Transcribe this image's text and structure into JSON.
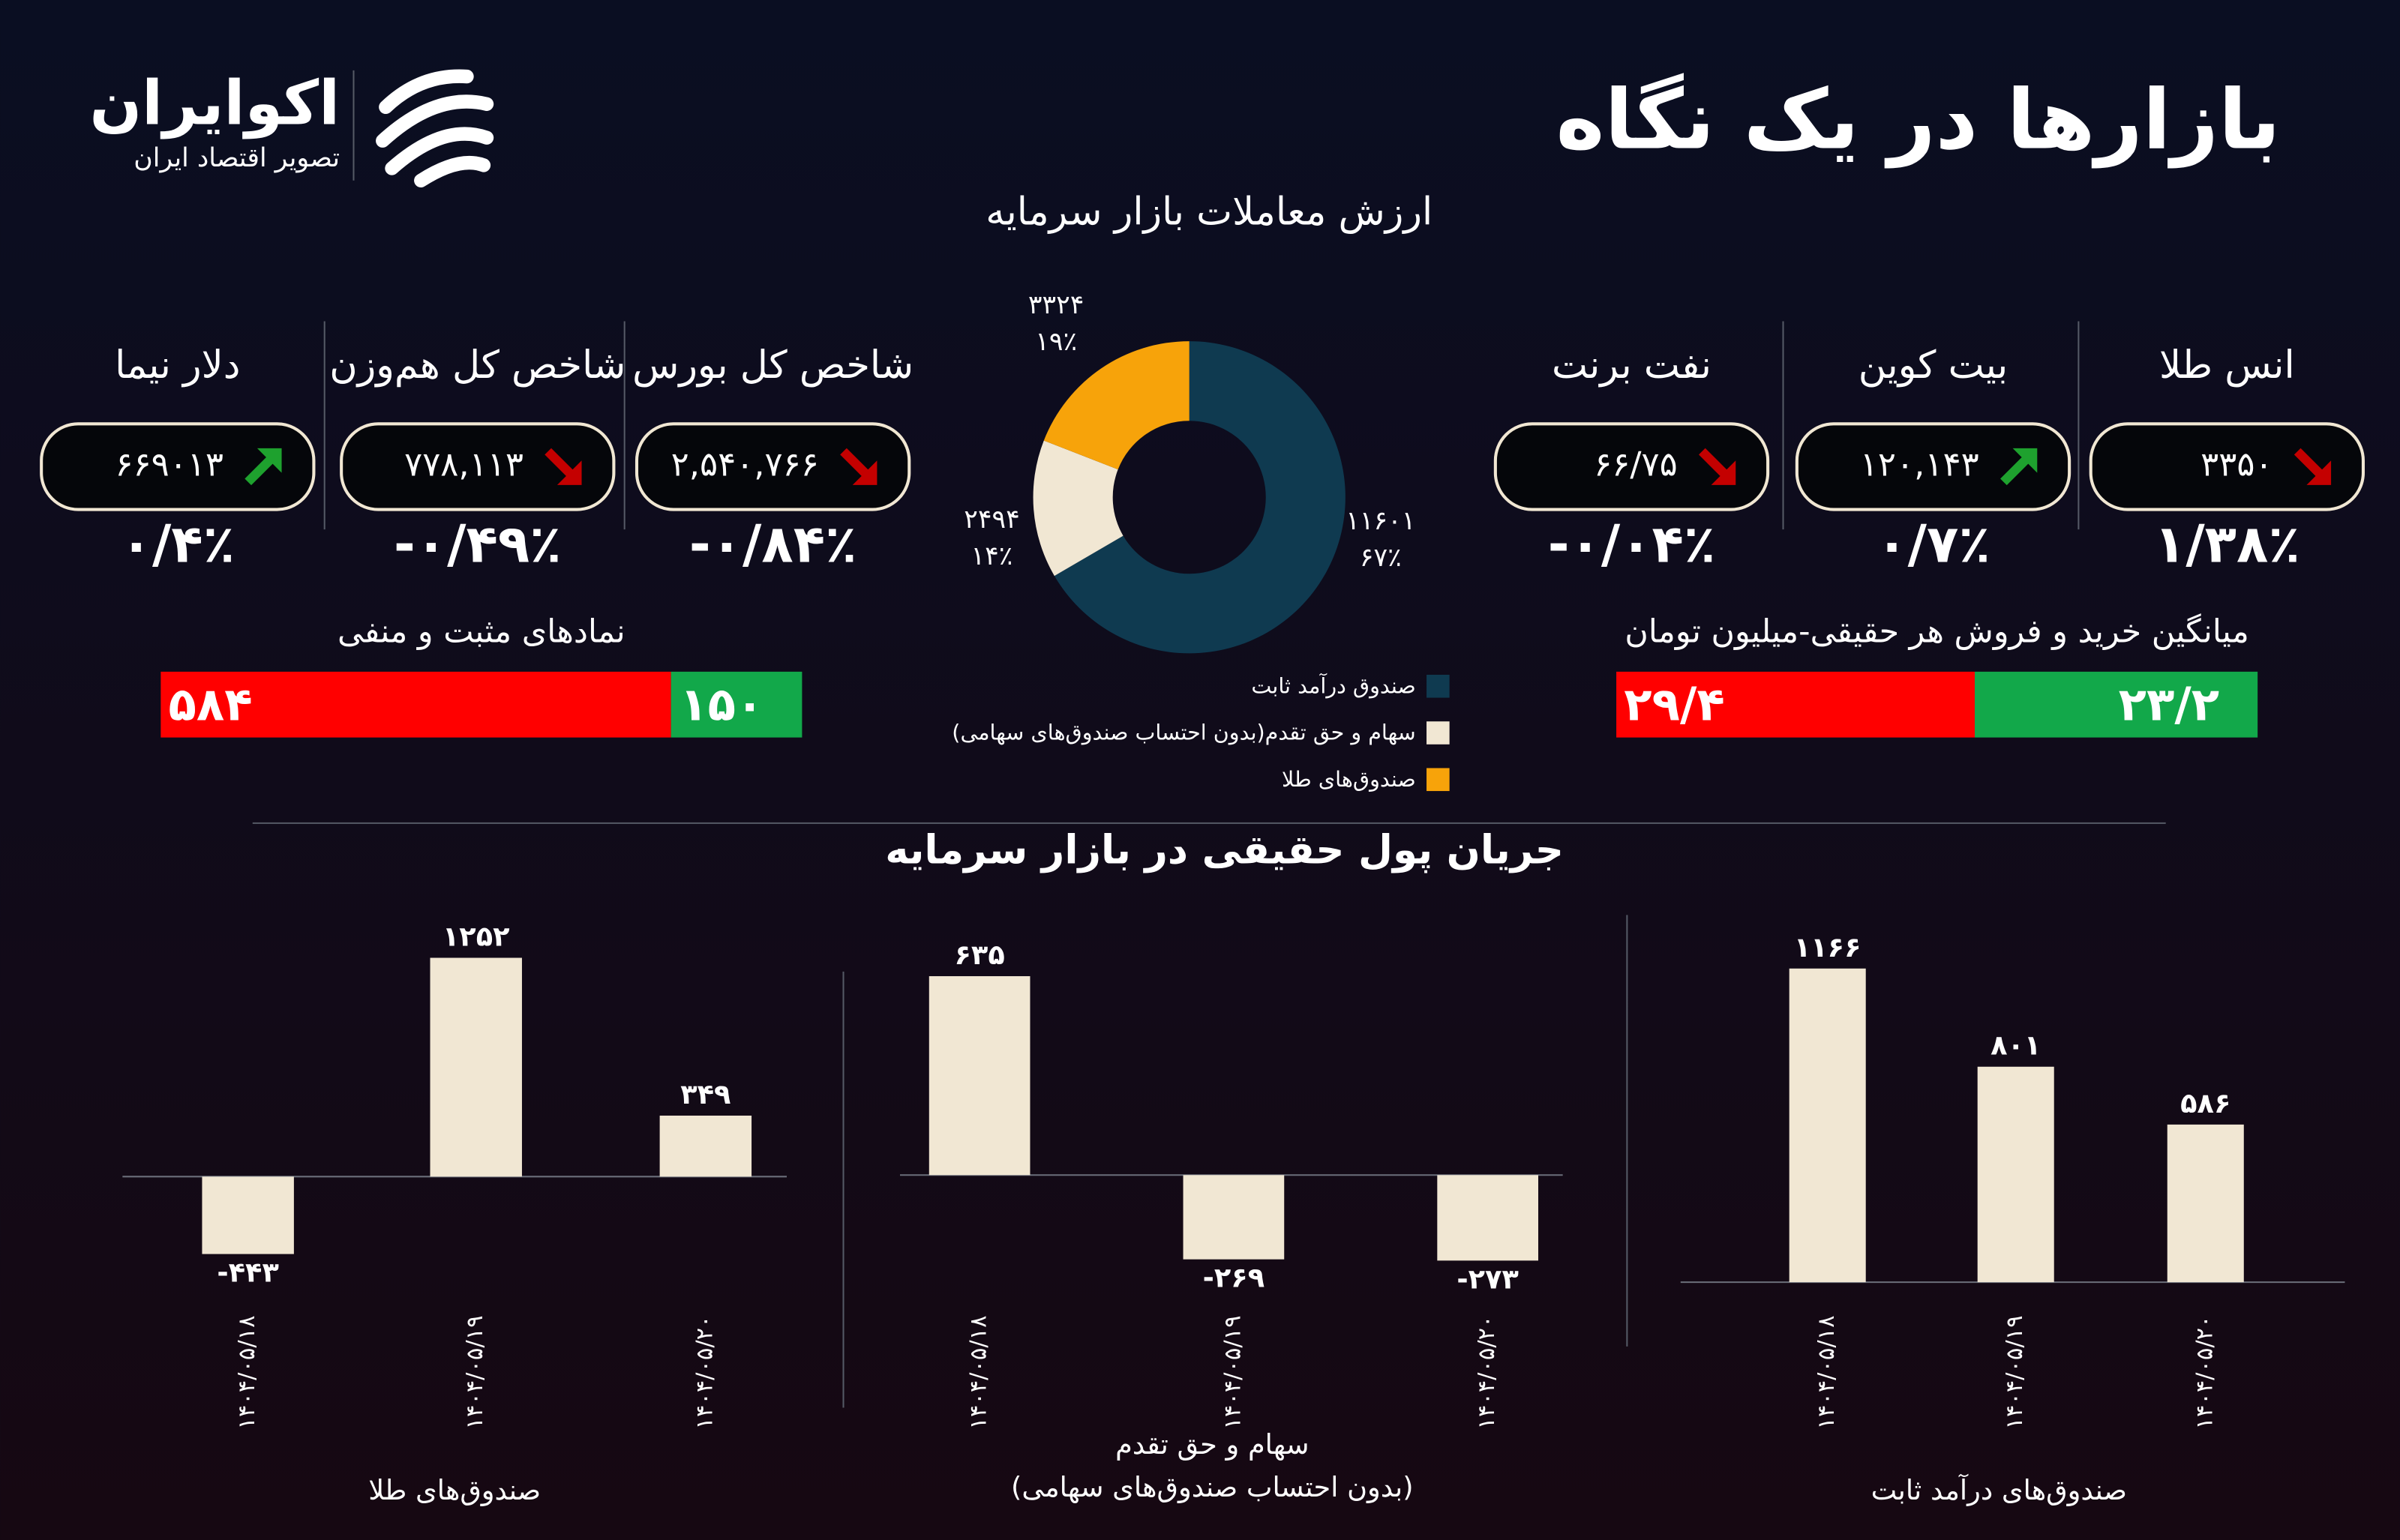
{
  "header": {
    "title": "بازارها در یک نگاه",
    "logo_name": "اکوایران",
    "logo_tagline": "تصویر اقتصاد ایران"
  },
  "tickers": [
    {
      "name": "انس طلا",
      "value": "۳۳۵۰",
      "change": "۱/۳۸٪",
      "direction": "down"
    },
    {
      "name": "بیت کوین",
      "value": "۱۲۰,۱۴۳",
      "change": "۰/۷٪",
      "direction": "up"
    },
    {
      "name": "نفت برنت",
      "value": "۶۶/۷۵",
      "change": "-۰/۰۴٪",
      "direction": "down"
    },
    {
      "name": "شاخص کل بورس",
      "value": "۲,۵۴۰,۷۶۶",
      "change": "-۰/۸۴٪",
      "direction": "down"
    },
    {
      "name": "شاخص کل هم‌وزن",
      "value": "۷۷۸,۱۱۳",
      "change": "-۰/۴۹٪",
      "direction": "down"
    },
    {
      "name": "دلار نیما",
      "value": "۶۶۹۰۱۳",
      "change": "۰/۴٪",
      "direction": "up"
    }
  ],
  "flow_title": "جریان پول حقیقی در بازار سرمایه",
  "chart_data": [
    {
      "type": "pie",
      "title": "ارزش معاملات  بازار سرمایه",
      "categories": [
        "صندوق درآمد ثابت",
        "سهام و حق تقدم(بدون احتساب صندوق‌های سهامی)",
        "صندوق‌های طلا"
      ],
      "values": [
        11601,
        2494,
        3324
      ],
      "value_labels": [
        "۱۱۶۰۱",
        "۲۴۹۴",
        "۳۳۲۴"
      ],
      "percent_labels": [
        "۶۷٪",
        "۱۴٪",
        "۱۹٪"
      ],
      "colors": [
        "#0f3a50",
        "#f1e7d3",
        "#f7a30a"
      ],
      "donut": true
    },
    {
      "type": "stacked-hbar",
      "title": "نمادهای مثبت و منفی",
      "values": [
        584,
        150
      ],
      "value_labels": [
        "۵۸۴",
        "۱۵۰"
      ],
      "colors": [
        "#ff0000",
        "#12a84a"
      ]
    },
    {
      "type": "stacked-hbar",
      "title": "میانگین خرید و فروش هر حقیقی-میلیون تومان",
      "values": [
        29.4,
        23.2
      ],
      "value_labels": [
        "۲۹/۴",
        "۲۳/۲"
      ],
      "colors": [
        "#ff0000",
        "#12a84a"
      ]
    },
    {
      "type": "bar",
      "title": "صندوق‌های طلا",
      "categories": [
        "۱۴۰۴/۰۵/۱۸",
        "۱۴۰۴/۰۵/۱۹",
        "۱۴۰۴/۰۵/۲۰"
      ],
      "values": [
        -443,
        1252,
        349
      ],
      "value_labels": [
        "-۴۴۳",
        "۱۲۵۲",
        "۳۴۹"
      ],
      "color": "#f1e7d3"
    },
    {
      "type": "bar",
      "title": "سهام و حق تقدم",
      "subtitle": "(بدون احتساب صندوق‌های سهامی)",
      "categories": [
        "۱۴۰۴/۰۵/۱۸",
        "۱۴۰۴/۰۵/۱۹",
        "۱۴۰۴/۰۵/۲۰"
      ],
      "values": [
        635,
        -269,
        -273
      ],
      "value_labels": [
        "۶۳۵",
        "-۲۶۹",
        "-۲۷۳"
      ],
      "color": "#f1e7d3"
    },
    {
      "type": "bar",
      "title": "صندوق‌های درآمد ثابت",
      "categories": [
        "۱۴۰۴/۰۵/۱۸",
        "۱۴۰۴/۰۵/۱۹",
        "۱۴۰۴/۰۵/۲۰"
      ],
      "values": [
        1166,
        801,
        586
      ],
      "value_labels": [
        "۱۱۶۶",
        "۸۰۱",
        "۵۸۶"
      ],
      "color": "#f1e7d3"
    }
  ]
}
